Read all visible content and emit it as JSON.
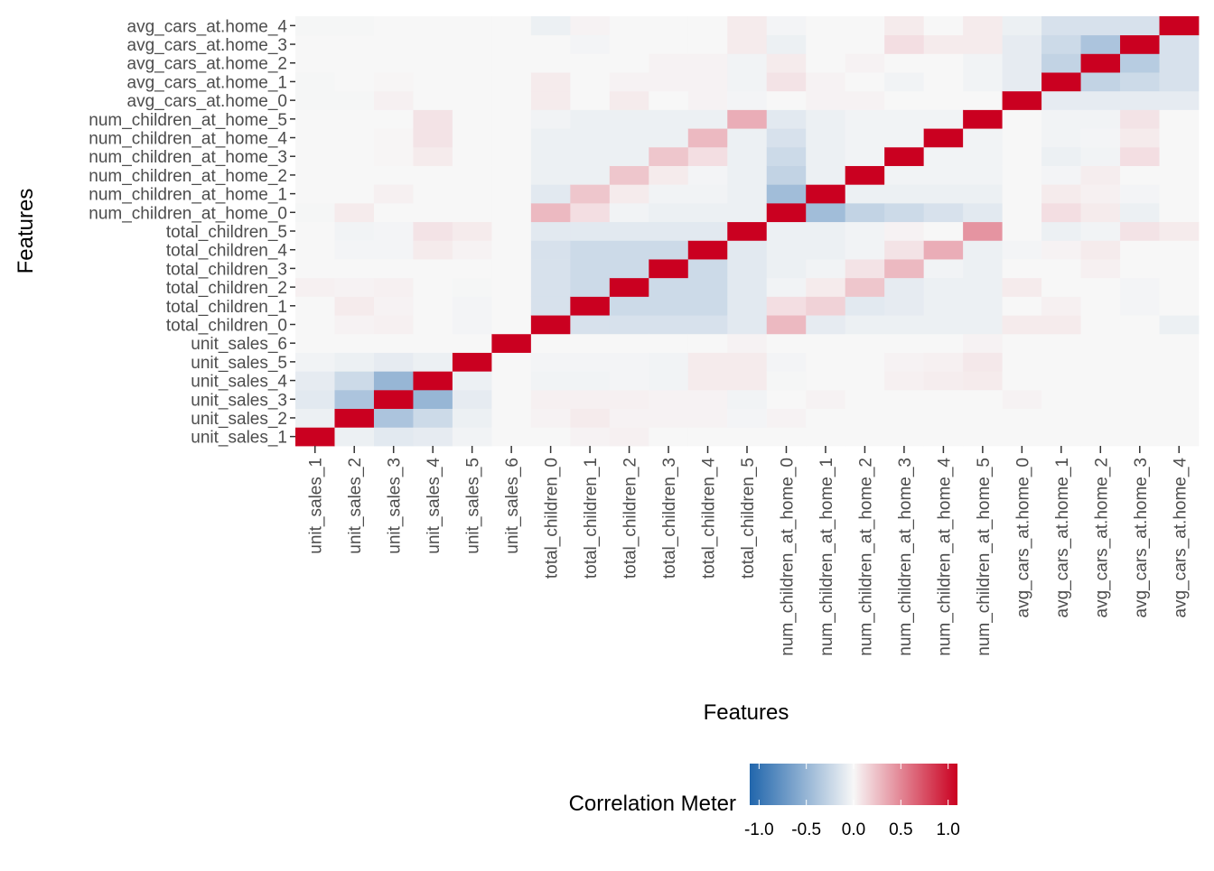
{
  "chart_data": {
    "type": "heatmap",
    "title": "",
    "xlabel": "Features",
    "ylabel": "Features",
    "features": [
      "unit_sales_1",
      "unit_sales_2",
      "unit_sales_3",
      "unit_sales_4",
      "unit_sales_5",
      "unit_sales_6",
      "total_children_0",
      "total_children_1",
      "total_children_2",
      "total_children_3",
      "total_children_4",
      "total_children_5",
      "num_children_at_home_0",
      "num_children_at_home_1",
      "num_children_at_home_2",
      "num_children_at_home_3",
      "num_children_at_home_4",
      "num_children_at_home_5",
      "avg_cars_at.home_0",
      "avg_cars_at.home_1",
      "avg_cars_at.home_2",
      "avg_cars_at.home_3",
      "avg_cars_at.home_4"
    ],
    "matrix": [
      [
        1,
        -0.05,
        -0.1,
        -0.08,
        -0.03,
        0,
        0,
        0,
        0.03,
        0,
        0,
        0,
        -0.01,
        0,
        0,
        0,
        0,
        0,
        -0.01,
        -0.01,
        0,
        0,
        -0.01
      ],
      [
        -0.05,
        1,
        -0.35,
        -0.2,
        -0.05,
        0,
        0.02,
        0.05,
        0.02,
        0,
        -0.02,
        -0.03,
        0.05,
        0,
        0,
        0,
        0,
        0,
        -0.01,
        0,
        0,
        0,
        -0.01
      ],
      [
        -0.1,
        -0.35,
        1,
        -0.45,
        -0.08,
        0,
        0.03,
        0.02,
        0.03,
        0,
        -0.02,
        -0.02,
        0,
        0.03,
        0,
        0.01,
        0.01,
        0,
        0.03,
        0.01,
        0,
        0,
        0
      ],
      [
        -0.08,
        -0.2,
        -0.45,
        1,
        -0.05,
        0,
        0,
        0,
        0,
        0,
        0.05,
        0.08,
        0,
        0,
        0,
        0.05,
        0.08,
        0.08,
        0,
        0,
        0,
        0,
        0
      ],
      [
        -0.03,
        -0.05,
        -0.08,
        -0.05,
        1,
        0,
        -0.02,
        -0.02,
        -0.01,
        0,
        0.02,
        0.05,
        0,
        0,
        0,
        0,
        0,
        0,
        0,
        0,
        0,
        0,
        0
      ],
      [
        0,
        0,
        0,
        0,
        0,
        1,
        0,
        0,
        0,
        0,
        0,
        0,
        0,
        0,
        0,
        0,
        0,
        0,
        0,
        0,
        0,
        0,
        0
      ],
      [
        0,
        0.02,
        0.03,
        -0.03,
        -0.02,
        0,
        1,
        -0.15,
        -0.15,
        -0.15,
        -0.15,
        -0.1,
        0.25,
        -0.1,
        -0.05,
        -0.05,
        -0.05,
        -0.03,
        0.05,
        0.05,
        0,
        0,
        -0.05
      ],
      [
        0.02,
        0.05,
        0.03,
        -0.03,
        -0.02,
        0,
        -0.15,
        1,
        -0.2,
        -0.2,
        -0.2,
        -0.1,
        0.1,
        0.2,
        -0.05,
        -0.05,
        -0.05,
        -0.05,
        0,
        0,
        0,
        -0.02,
        0.02
      ],
      [
        0.03,
        0.02,
        0.03,
        -0.02,
        -0.02,
        0,
        -0.15,
        -0.2,
        1,
        -0.2,
        -0.2,
        -0.1,
        -0.03,
        0.05,
        0.2,
        -0.05,
        -0.05,
        -0.05,
        0.05,
        0.02,
        0,
        0,
        0
      ],
      [
        0,
        0.02,
        0.02,
        -0.03,
        -0.03,
        0,
        -0.15,
        -0.2,
        -0.2,
        1,
        -0.2,
        -0.1,
        -0.05,
        -0.03,
        0.05,
        0.2,
        -0.05,
        -0.05,
        0,
        0.02,
        0.02,
        0,
        0
      ],
      [
        0,
        0.02,
        0.02,
        0.05,
        0.05,
        0,
        -0.15,
        -0.2,
        -0.2,
        -0.2,
        1,
        -0.1,
        -0.05,
        -0.03,
        -0.02,
        0.1,
        0.25,
        -0.05,
        0.02,
        0.02,
        0.02,
        0,
        0
      ],
      [
        0,
        -0.02,
        -0.03,
        0.05,
        0.05,
        0.02,
        -0.1,
        -0.1,
        -0.1,
        -0.1,
        -0.1,
        1,
        -0.05,
        -0.05,
        -0.05,
        -0.05,
        -0.05,
        0.3,
        -0.02,
        -0.03,
        -0.03,
        0.05,
        0.05
      ],
      [
        0,
        0.02,
        0,
        -0.01,
        -0.02,
        0,
        0.25,
        0.1,
        -0.03,
        -0.05,
        -0.05,
        -0.05,
        1,
        -0.4,
        -0.25,
        -0.2,
        -0.15,
        -0.1,
        0,
        0.08,
        0.05,
        -0.05,
        -0.02
      ],
      [
        0,
        0,
        0.02,
        0,
        0,
        0,
        -0.08,
        0.15,
        0.05,
        -0.03,
        -0.05,
        -0.05,
        -0.4,
        1,
        -0.05,
        -0.05,
        -0.05,
        -0.05,
        0.02,
        0.02,
        0,
        0,
        0
      ],
      [
        0,
        0,
        0,
        0,
        0,
        0,
        -0.05,
        -0.1,
        0.2,
        0.08,
        -0.03,
        -0.03,
        -0.25,
        -0.05,
        1,
        -0.03,
        -0.03,
        -0.03,
        0.02,
        0,
        0.02,
        0,
        0
      ],
      [
        0,
        0,
        0,
        0.03,
        0.02,
        0,
        -0.05,
        -0.08,
        -0.08,
        0.25,
        0.08,
        0.02,
        -0.2,
        -0.05,
        -0.03,
        1,
        -0.03,
        -0.03,
        0,
        -0.03,
        0,
        0.1,
        0.05
      ],
      [
        0,
        0,
        0,
        0.04,
        0.03,
        0,
        -0.05,
        -0.05,
        -0.05,
        -0.03,
        0.3,
        0,
        -0.15,
        -0.05,
        -0.03,
        -0.03,
        1,
        -0.03,
        0,
        0,
        0,
        0.05,
        0
      ],
      [
        0,
        0,
        0,
        0.05,
        0.06,
        0.02,
        -0.05,
        -0.05,
        -0.05,
        -0.05,
        -0.05,
        0.4,
        -0.1,
        -0.05,
        -0.03,
        -0.03,
        -0.03,
        1,
        0,
        -0.03,
        -0.03,
        0.05,
        0.05
      ],
      [
        0,
        0,
        0.02,
        0,
        0,
        0,
        0.05,
        0,
        0.05,
        0,
        -0.02,
        0,
        0,
        0,
        0,
        0,
        0,
        0,
        1,
        -0.08,
        -0.08,
        -0.08,
        -0.05
      ],
      [
        0,
        0,
        0,
        0,
        0,
        0,
        0.05,
        0.03,
        0,
        0,
        0.02,
        -0.05,
        0.1,
        0.05,
        -0.02,
        -0.05,
        -0.03,
        -0.03,
        -0.08,
        1,
        -0.25,
        -0.2,
        -0.15
      ],
      [
        0,
        0,
        0,
        0,
        0,
        0,
        0,
        0,
        0,
        0.03,
        0.05,
        -0.03,
        0.05,
        0.03,
        0.04,
        -0.03,
        -0.02,
        -0.03,
        -0.08,
        -0.25,
        1,
        -0.35,
        -0.15
      ],
      [
        0,
        0,
        0,
        0,
        0,
        0,
        0,
        -0.02,
        -0.02,
        0,
        0,
        0.08,
        -0.05,
        -0.02,
        0,
        0.1,
        0.05,
        0.08,
        -0.08,
        -0.2,
        -0.3,
        1,
        -0.15
      ],
      [
        0,
        0,
        0,
        0,
        0,
        0,
        -0.05,
        0,
        0,
        0,
        0,
        0.05,
        0,
        0,
        0,
        0,
        0,
        0,
        -0.08,
        -0.15,
        -0.15,
        -0.15,
        1
      ]
    ],
    "legend": {
      "title": "Correlation Meter",
      "placement": "bottom",
      "ticks": [
        "-1.0",
        "-0.5",
        "0.0",
        "0.5",
        "1.0"
      ],
      "tick_values": [
        -1,
        -0.5,
        0,
        0.5,
        1
      ]
    },
    "colors": {
      "low": "#2166ac",
      "mid": "#f7f7f7",
      "high": "#ca0020",
      "grid": "#ebebeb",
      "axis_text": "#4d4d4d"
    },
    "grid": true
  }
}
